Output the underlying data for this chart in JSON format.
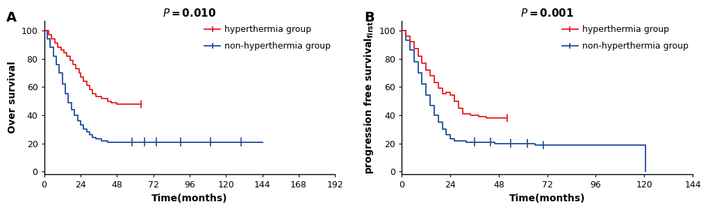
{
  "panel_A": {
    "title": "P=0.010",
    "xlabel": "Time(months)",
    "ylabel": "Over survival",
    "xlim": [
      0,
      192
    ],
    "ylim": [
      -2,
      107
    ],
    "xticks": [
      0,
      24,
      48,
      72,
      96,
      120,
      144,
      168,
      192
    ],
    "yticks": [
      0,
      20,
      40,
      60,
      80,
      100
    ],
    "red_x": [
      0,
      3,
      5,
      7,
      9,
      11,
      13,
      15,
      17,
      19,
      21,
      23,
      24,
      26,
      28,
      30,
      32,
      34,
      36,
      38,
      40,
      42,
      44,
      46,
      48,
      50,
      52,
      54,
      56,
      58,
      60,
      62,
      64
    ],
    "red_y": [
      100,
      97,
      94,
      91,
      88,
      86,
      84,
      82,
      79,
      76,
      73,
      70,
      67,
      64,
      61,
      58,
      55,
      53,
      53,
      52,
      52,
      50,
      49,
      49,
      48,
      48,
      48,
      48,
      48,
      48,
      48,
      48,
      48
    ],
    "red_censors_x": [
      64
    ],
    "red_censors_y": [
      48
    ],
    "blue_x": [
      0,
      2,
      4,
      6,
      8,
      10,
      12,
      14,
      16,
      18,
      20,
      22,
      24,
      26,
      28,
      30,
      32,
      34,
      36,
      38,
      40,
      42,
      44,
      46,
      48,
      50,
      52,
      54,
      56,
      58,
      62,
      66,
      70,
      74,
      78,
      82,
      86,
      90,
      94,
      98,
      110,
      120,
      130,
      144
    ],
    "blue_y": [
      100,
      94,
      88,
      82,
      76,
      70,
      62,
      55,
      49,
      44,
      40,
      36,
      33,
      30,
      28,
      26,
      24,
      23,
      23,
      22,
      22,
      21,
      21,
      21,
      21,
      21,
      21,
      21,
      21,
      21,
      21,
      21,
      21,
      21,
      21,
      21,
      21,
      21,
      21,
      21,
      21,
      21,
      21,
      21
    ],
    "blue_censors_x": [
      58,
      66,
      74,
      90,
      110,
      130
    ],
    "blue_censors_y": [
      21,
      21,
      21,
      21,
      21,
      21
    ],
    "label_red": "hyperthermia group",
    "label_blue": "non-hyperthermia group",
    "panel_label": "A"
  },
  "panel_B": {
    "title": "P=0.001",
    "xlabel": "Time(months)",
    "ylabel": "progression free survival",
    "ylabel_subscript": "first",
    "xlim": [
      0,
      144
    ],
    "ylim": [
      -2,
      107
    ],
    "xticks": [
      0,
      24,
      48,
      72,
      96,
      120,
      144
    ],
    "yticks": [
      0,
      20,
      40,
      60,
      80,
      100
    ],
    "red_x": [
      0,
      2,
      4,
      6,
      8,
      10,
      12,
      14,
      16,
      18,
      20,
      22,
      24,
      26,
      28,
      30,
      32,
      34,
      36,
      38,
      40,
      42,
      44,
      46,
      48,
      50,
      52
    ],
    "red_y": [
      100,
      96,
      92,
      87,
      82,
      77,
      72,
      68,
      63,
      59,
      55,
      56,
      54,
      50,
      45,
      41,
      41,
      40,
      40,
      39,
      39,
      38,
      38,
      38,
      38,
      38,
      38
    ],
    "red_censors_x": [
      52
    ],
    "red_censors_y": [
      38
    ],
    "blue_x": [
      0,
      2,
      4,
      6,
      8,
      10,
      12,
      14,
      16,
      18,
      20,
      22,
      24,
      26,
      28,
      30,
      32,
      34,
      36,
      38,
      40,
      42,
      44,
      46,
      48,
      50,
      52,
      54,
      56,
      58,
      60,
      62,
      64,
      66,
      68,
      70,
      72,
      96,
      120,
      120.5
    ],
    "blue_y": [
      100,
      93,
      86,
      78,
      70,
      62,
      54,
      47,
      40,
      35,
      30,
      26,
      23,
      22,
      22,
      22,
      21,
      21,
      21,
      21,
      21,
      21,
      21,
      20,
      20,
      20,
      20,
      20,
      20,
      20,
      20,
      20,
      20,
      19,
      19,
      19,
      19,
      19,
      19,
      0
    ],
    "blue_censors_x": [
      36,
      44,
      54,
      62,
      70
    ],
    "blue_censors_y": [
      21,
      21,
      20,
      20,
      19
    ],
    "label_red": "hyperthermia group",
    "label_blue": "non-hyperthermia group",
    "panel_label": "B"
  },
  "red_color": "#E8191A",
  "blue_color": "#1B4B9B",
  "font_size_title": 11,
  "font_size_label": 10,
  "font_size_tick": 9,
  "font_size_legend": 9,
  "font_size_panel": 14
}
